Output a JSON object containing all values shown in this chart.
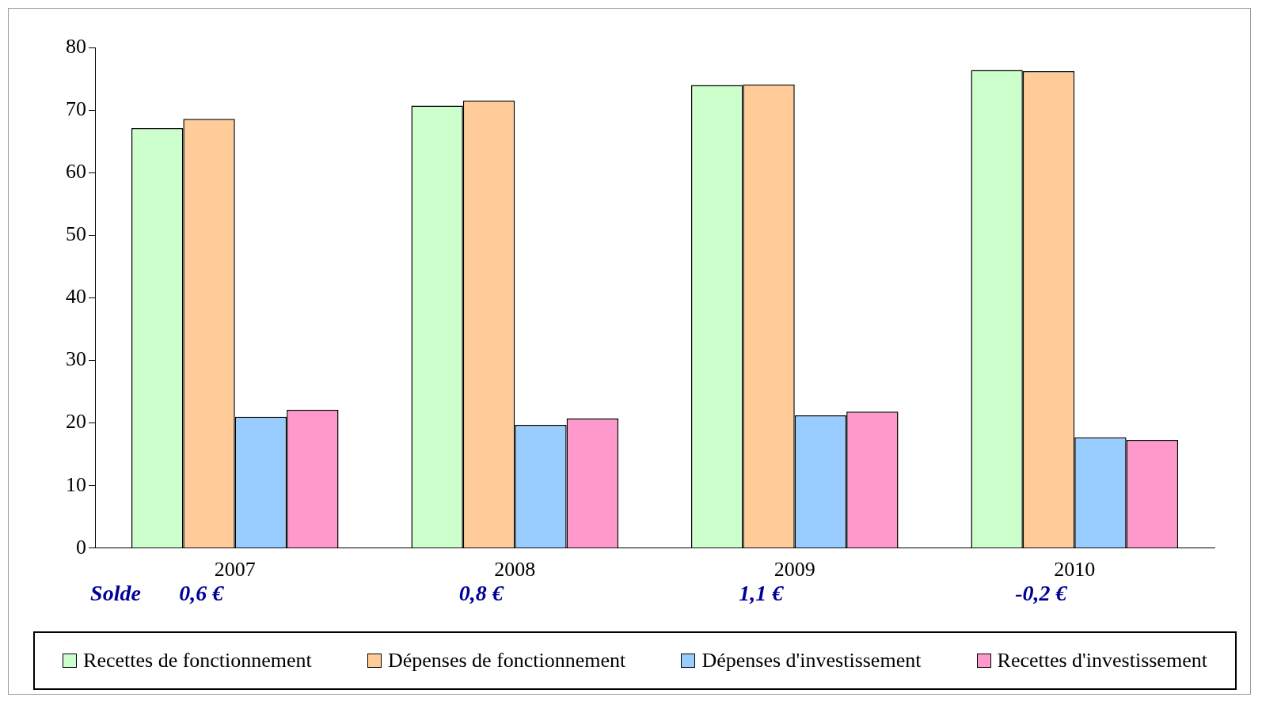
{
  "chart_data": {
    "type": "bar",
    "categories": [
      "2007",
      "2008",
      "2009",
      "2010"
    ],
    "series": [
      {
        "name": "Recettes de fonctionnement",
        "color": "#ccffcc",
        "values": [
          67.1,
          70.7,
          74.0,
          76.4
        ]
      },
      {
        "name": "Dépenses de fonctionnement",
        "color": "#ffcc99",
        "values": [
          68.6,
          71.5,
          74.1,
          76.2
        ]
      },
      {
        "name": "Dépenses d'investissement",
        "color": "#99ccff",
        "values": [
          21.0,
          19.7,
          21.2,
          17.7
        ]
      },
      {
        "name": "Recettes d'investissement",
        "color": "#ff99cc",
        "values": [
          22.1,
          20.7,
          21.8,
          17.3
        ]
      }
    ],
    "ylim": [
      0,
      80
    ],
    "yticks": [
      0,
      10,
      20,
      30,
      40,
      50,
      60,
      70,
      80
    ],
    "grid": false,
    "legend": "bottom",
    "annotations": [
      "Solde",
      "0,6 €",
      "0,8 €",
      "1,1 €",
      "-0,2 €"
    ]
  }
}
